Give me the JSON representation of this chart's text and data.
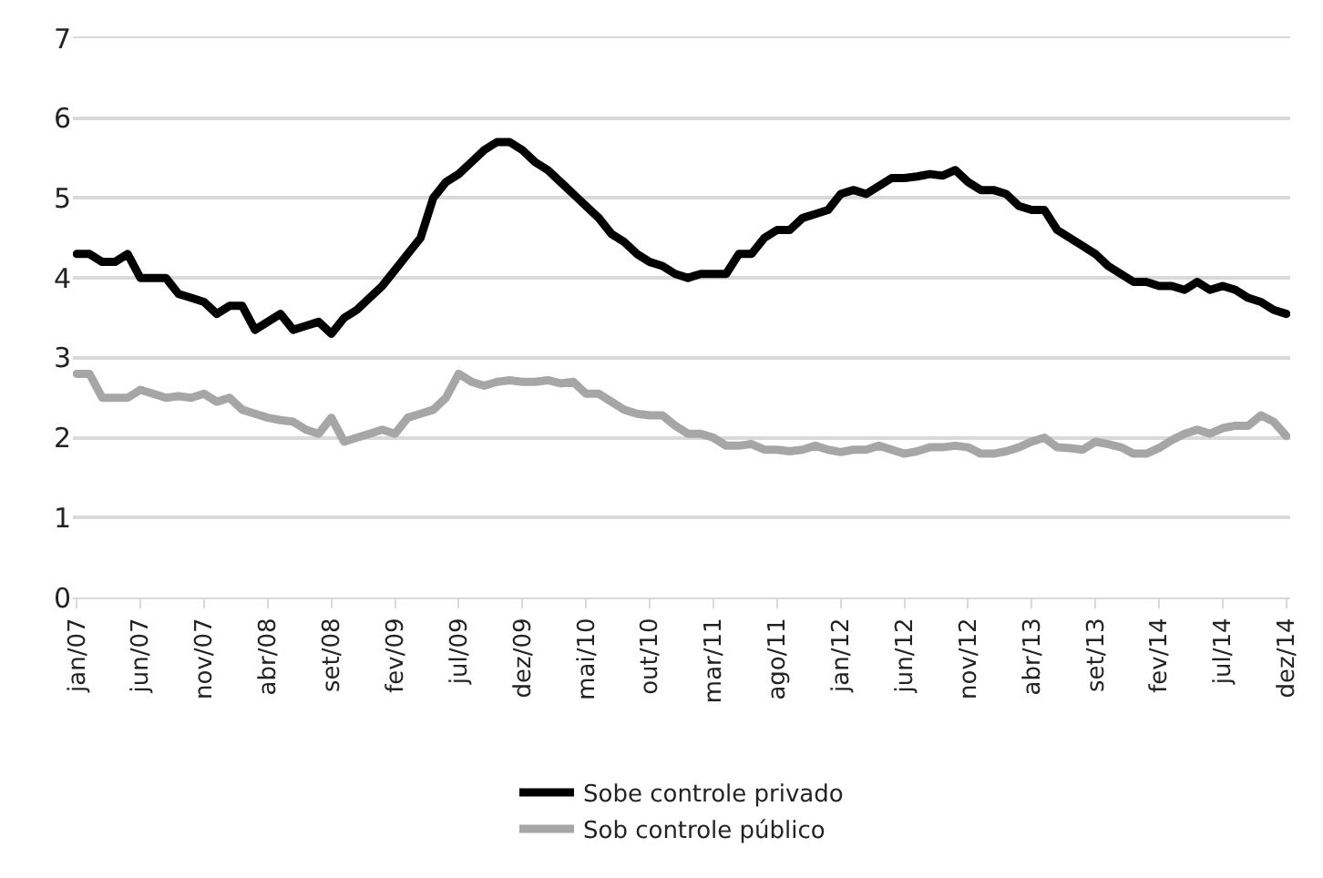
{
  "chart_data": {
    "type": "line",
    "categories": [
      "jan/07",
      null,
      null,
      null,
      null,
      "jun/07",
      null,
      null,
      null,
      null,
      "nov/07",
      null,
      null,
      null,
      null,
      "abr/08",
      null,
      null,
      null,
      null,
      "set/08",
      null,
      null,
      null,
      null,
      "fev/09",
      null,
      null,
      null,
      null,
      "jul/09",
      null,
      null,
      null,
      null,
      "dez/09",
      null,
      null,
      null,
      null,
      "mai/10",
      null,
      null,
      null,
      null,
      "out/10",
      null,
      null,
      null,
      null,
      "mar/11",
      null,
      null,
      null,
      null,
      "ago/11",
      null,
      null,
      null,
      null,
      "jan/12",
      null,
      null,
      null,
      null,
      "jun/12",
      null,
      null,
      null,
      null,
      "nov/12",
      null,
      null,
      null,
      null,
      "abr/13",
      null,
      null,
      null,
      null,
      "set/13",
      null,
      null,
      null,
      null,
      "fev/14",
      null,
      null,
      null,
      null,
      "jul/14",
      null,
      null,
      null,
      null,
      "dez/14"
    ],
    "series": [
      {
        "name": "Sobe controle privado",
        "color": "#000000",
        "values": [
          4.3,
          4.3,
          4.2,
          4.2,
          4.3,
          4.0,
          4.0,
          4.0,
          3.8,
          3.75,
          3.7,
          3.55,
          3.65,
          3.65,
          3.35,
          3.45,
          3.55,
          3.35,
          3.4,
          3.45,
          3.3,
          3.5,
          3.6,
          3.75,
          3.9,
          4.1,
          4.3,
          4.5,
          5.0,
          5.2,
          5.3,
          5.45,
          5.6,
          5.7,
          5.7,
          5.6,
          5.45,
          5.35,
          5.2,
          5.05,
          4.9,
          4.75,
          4.55,
          4.45,
          4.3,
          4.2,
          4.15,
          4.05,
          4.0,
          4.05,
          4.05,
          4.05,
          4.3,
          4.3,
          4.5,
          4.6,
          4.6,
          4.75,
          4.8,
          4.85,
          5.05,
          5.1,
          5.05,
          5.15,
          5.25,
          5.25,
          5.27,
          5.3,
          5.28,
          5.35,
          5.2,
          5.1,
          5.1,
          5.05,
          4.9,
          4.85,
          4.85,
          4.6,
          4.5,
          4.4,
          4.3,
          4.15,
          4.05,
          3.95,
          3.95,
          3.9,
          3.9,
          3.85,
          3.95,
          3.85,
          3.9,
          3.85,
          3.75,
          3.7,
          3.6,
          3.55
        ]
      },
      {
        "name": "Sob controle público",
        "color": "#a6a6a6",
        "values": [
          2.8,
          2.8,
          2.5,
          2.5,
          2.5,
          2.6,
          2.55,
          2.5,
          2.52,
          2.5,
          2.55,
          2.45,
          2.5,
          2.35,
          2.3,
          2.25,
          2.22,
          2.2,
          2.1,
          2.05,
          2.25,
          1.95,
          2.0,
          2.05,
          2.1,
          2.05,
          2.25,
          2.3,
          2.35,
          2.5,
          2.8,
          2.7,
          2.65,
          2.7,
          2.72,
          2.7,
          2.7,
          2.72,
          2.68,
          2.7,
          2.55,
          2.55,
          2.45,
          2.35,
          2.3,
          2.28,
          2.28,
          2.15,
          2.05,
          2.05,
          2.0,
          1.9,
          1.9,
          1.92,
          1.85,
          1.85,
          1.83,
          1.85,
          1.9,
          1.85,
          1.82,
          1.85,
          1.85,
          1.9,
          1.85,
          1.8,
          1.83,
          1.88,
          1.88,
          1.9,
          1.88,
          1.8,
          1.8,
          1.83,
          1.88,
          1.95,
          2.0,
          1.88,
          1.87,
          1.85,
          1.95,
          1.92,
          1.88,
          1.8,
          1.8,
          1.87,
          1.97,
          2.05,
          2.1,
          2.05,
          2.12,
          2.15,
          2.15,
          2.28,
          2.2,
          2.02
        ]
      }
    ],
    "ylim": [
      0,
      7
    ],
    "yticks": [
      0,
      1,
      2,
      3,
      4,
      5,
      6,
      7
    ],
    "grid": "y",
    "legend": "bottom",
    "marker": "none",
    "line_style": "solid"
  }
}
